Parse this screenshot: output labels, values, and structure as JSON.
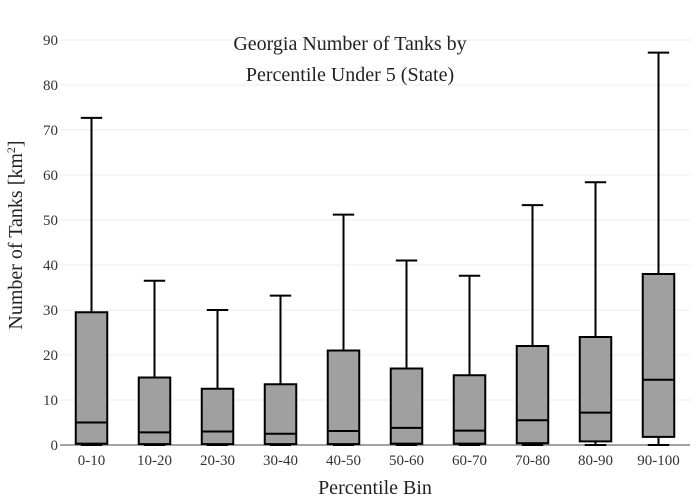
{
  "chart_data": {
    "type": "box",
    "title_lines": [
      "Georgia Number of Tanks by",
      "Percentile Under 5 (State)"
    ],
    "xlabel": "Percentile Bin",
    "ylabel_main": "Number of Tanks  [km",
    "ylabel_sup": "2",
    "ylabel_close": "]",
    "ylim": [
      0,
      90
    ],
    "yticks": [
      0,
      10,
      20,
      30,
      40,
      50,
      60,
      70,
      80,
      90
    ],
    "grid": true,
    "categories": [
      "0-10",
      "10-20",
      "20-30",
      "30-40",
      "40-50",
      "50-60",
      "60-70",
      "70-80",
      "80-90",
      "90-100"
    ],
    "boxes": [
      {
        "min": 0,
        "q1": 0.3,
        "median": 5.0,
        "q3": 29.5,
        "max": 72.7
      },
      {
        "min": 0,
        "q1": 0.2,
        "median": 2.8,
        "q3": 15.0,
        "max": 36.5
      },
      {
        "min": 0,
        "q1": 0.2,
        "median": 3.0,
        "q3": 12.5,
        "max": 30.0
      },
      {
        "min": 0,
        "q1": 0.2,
        "median": 2.5,
        "q3": 13.5,
        "max": 33.2
      },
      {
        "min": 0,
        "q1": 0.2,
        "median": 3.1,
        "q3": 21.0,
        "max": 51.2
      },
      {
        "min": 0,
        "q1": 0.3,
        "median": 3.8,
        "q3": 17.0,
        "max": 41.0
      },
      {
        "min": 0,
        "q1": 0.3,
        "median": 3.2,
        "q3": 15.5,
        "max": 37.6
      },
      {
        "min": 0,
        "q1": 0.4,
        "median": 5.5,
        "q3": 22.0,
        "max": 53.3
      },
      {
        "min": 0,
        "q1": 0.8,
        "median": 7.2,
        "q3": 24.0,
        "max": 58.4
      },
      {
        "min": 0,
        "q1": 1.8,
        "median": 14.5,
        "q3": 38.0,
        "max": 87.2
      }
    ]
  }
}
